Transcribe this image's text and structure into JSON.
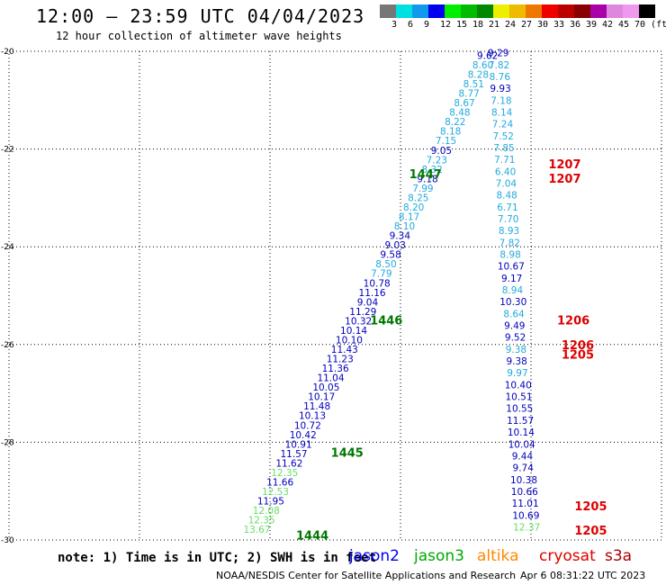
{
  "header": {
    "title": "12:00 – 23:59 UTC 04/04/2023",
    "subtitle": "12 hour collection of altimeter wave heights"
  },
  "colorbar": {
    "swatches": [
      "#777777",
      "#00e0e0",
      "#1199ee",
      "#0000ee",
      "#00ee00",
      "#00bb00",
      "#008800",
      "#eeee00",
      "#eebb00",
      "#ee7700",
      "#ee0000",
      "#bb0000",
      "#880000",
      "#aa00aa",
      "#dd88dd",
      "#ee99ee",
      "#000000"
    ],
    "labels": [
      "3",
      "6",
      "9",
      "12",
      "15",
      "18",
      "21",
      "24",
      "27",
      "30",
      "33",
      "36",
      "39",
      "42",
      "45",
      "70 (ft)"
    ]
  },
  "axes": {
    "lon_ticks": [
      "-30",
      "-27",
      "-24",
      "-21",
      "-18",
      "-15"
    ],
    "lat_ticks": [
      "-20",
      "-22",
      "-24",
      "-26",
      "-28",
      "-30"
    ],
    "lon_range": [
      -30,
      -15
    ],
    "lat_range": [
      -30,
      -20
    ]
  },
  "pass_colors": {
    "c": "#22aadd",
    "n": "#0000bb",
    "g": "#66dd66",
    "k": "#000000"
  },
  "track_a": [
    [
      "9.62",
      "n"
    ],
    [
      "8.60",
      "c"
    ],
    [
      "8.28",
      "c"
    ],
    [
      "8.51",
      "c"
    ],
    [
      "8.77",
      "c"
    ],
    [
      "8.67",
      "c"
    ],
    [
      "8.48",
      "c"
    ],
    [
      "8.22",
      "c"
    ],
    [
      "8.18",
      "c"
    ],
    [
      "7.15",
      "c"
    ],
    [
      "9.05",
      "n"
    ],
    [
      "7.23",
      "c"
    ],
    [
      "8.32",
      "c"
    ],
    [
      "9.18",
      "n"
    ],
    [
      "7.99",
      "c"
    ],
    [
      "8.25",
      "c"
    ],
    [
      "8.20",
      "c"
    ],
    [
      "8.17",
      "c"
    ],
    [
      "8.10",
      "c"
    ],
    [
      "9.34",
      "n"
    ],
    [
      "9.03",
      "n"
    ],
    [
      "9.58",
      "n"
    ],
    [
      "8.50",
      "c"
    ],
    [
      "7.79",
      "c"
    ],
    [
      "10.78",
      "n"
    ],
    [
      "11.16",
      "n"
    ],
    [
      "9.04",
      "n"
    ],
    [
      "11.29",
      "n"
    ],
    [
      "10.32",
      "n"
    ],
    [
      "10.14",
      "n"
    ],
    [
      "10.10",
      "n"
    ],
    [
      "11.43",
      "n"
    ],
    [
      "11.23",
      "n"
    ],
    [
      "11.36",
      "n"
    ],
    [
      "11.04",
      "n"
    ],
    [
      "10.05",
      "n"
    ],
    [
      "10.17",
      "n"
    ],
    [
      "11.48",
      "n"
    ],
    [
      "10.13",
      "n"
    ],
    [
      "10.72",
      "n"
    ],
    [
      "10.42",
      "n"
    ],
    [
      "10.91",
      "n"
    ],
    [
      "11.57",
      "n"
    ],
    [
      "11.62",
      "n"
    ],
    [
      "12.35",
      "g"
    ],
    [
      "11.66",
      "n"
    ],
    [
      "12.53",
      "g"
    ],
    [
      "11.95",
      "n"
    ],
    [
      "12.08",
      "g"
    ],
    [
      "12.35",
      "g"
    ],
    [
      "13.67",
      "g"
    ]
  ],
  "track_b": [
    [
      "9.29",
      "n"
    ],
    [
      "7.82",
      "c"
    ],
    [
      "8.76",
      "c"
    ],
    [
      "9.93",
      "n"
    ],
    [
      "7.18",
      "c"
    ],
    [
      "8.14",
      "c"
    ],
    [
      "7.24",
      "c"
    ],
    [
      "7.52",
      "c"
    ],
    [
      "7.85",
      "c"
    ],
    [
      "7.71",
      "c"
    ],
    [
      "6.40",
      "c"
    ],
    [
      "7.04",
      "c"
    ],
    [
      "8.48",
      "c"
    ],
    [
      "6.71",
      "c"
    ],
    [
      "7.70",
      "c"
    ],
    [
      "8.93",
      "c"
    ],
    [
      "7.82",
      "c"
    ],
    [
      "8.98",
      "c"
    ],
    [
      "10.67",
      "n"
    ],
    [
      "9.17",
      "n"
    ],
    [
      "8.94",
      "c"
    ],
    [
      "10.30",
      "n"
    ],
    [
      "8.64",
      "c"
    ],
    [
      "9.49",
      "n"
    ],
    [
      "9.52",
      "n"
    ],
    [
      "9.38",
      "c"
    ],
    [
      "9.38",
      "n"
    ],
    [
      "9.97",
      "c"
    ],
    [
      "10.40",
      "n"
    ],
    [
      "10.51",
      "n"
    ],
    [
      "10.55",
      "n"
    ],
    [
      "11.57",
      "n"
    ],
    [
      "10.14",
      "n"
    ],
    [
      "10.04",
      "n"
    ],
    [
      "9.44",
      "n"
    ],
    [
      "9.74",
      "n"
    ],
    [
      "10.38",
      "n"
    ],
    [
      "10.66",
      "n"
    ],
    [
      "11.01",
      "n"
    ],
    [
      "10.69",
      "n"
    ],
    [
      "12.37",
      "g"
    ]
  ],
  "time_labels": [
    {
      "text": "1447",
      "color": "#007700"
    },
    {
      "text": "1446",
      "color": "#007700"
    },
    {
      "text": "1445",
      "color": "#007700"
    },
    {
      "text": "1444",
      "color": "#007700"
    },
    {
      "text": "1207",
      "color": "#dd0000"
    },
    {
      "text": "1207",
      "color": "#dd0000"
    },
    {
      "text": "1206",
      "color": "#dd0000"
    },
    {
      "text": "1206",
      "color": "#dd0000"
    },
    {
      "text": "1205",
      "color": "#dd0000"
    },
    {
      "text": "1205",
      "color": "#dd0000"
    },
    {
      "text": "1205",
      "color": "#dd0000"
    }
  ],
  "footer": {
    "note": "note: 1) Time is in UTC; 2) SWH is in feet",
    "satellites": [
      {
        "name": "jason2",
        "color": "#0000ee"
      },
      {
        "name": "jason3",
        "color": "#00aa00"
      },
      {
        "name": "altika",
        "color": "#ff8800"
      },
      {
        "name": "cryosat",
        "color": "#dd0000"
      },
      {
        "name": "s3a",
        "color": "#aa0000"
      }
    ],
    "credit": "NOAA/NESDIS Center for Satellite Applications and Research",
    "timestamp": "Apr  6 08:31:22 UTC 2023"
  }
}
